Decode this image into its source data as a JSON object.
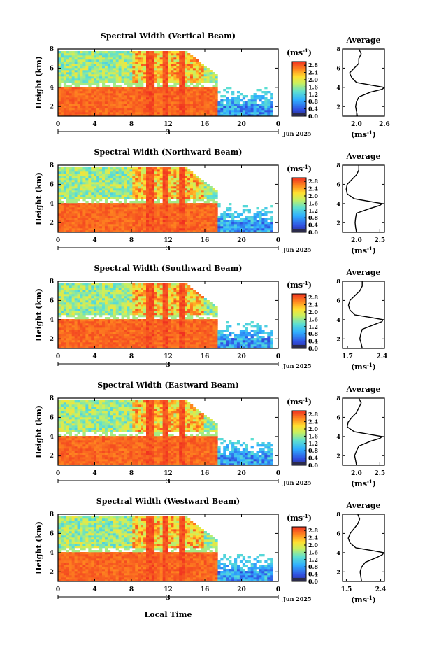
{
  "chart_data": [
    {
      "type": "heatmap",
      "title": "Spectral Width (Vertical Beam)",
      "ylabel": "Height (km)",
      "xlabel": "",
      "x_ticks": [
        "0",
        "4",
        "8",
        "12",
        "16",
        "20",
        "0"
      ],
      "y_ticks": [
        "2",
        "4",
        "6",
        "8"
      ],
      "xlim": [
        0,
        24
      ],
      "ylim": [
        1,
        8
      ],
      "date_tick": "3",
      "date_label": "Jun 2025",
      "colorbar": {
        "unit": "(ms",
        "unit_exp": "-1",
        "unit_close": ")",
        "ticks": [
          "0.0",
          "0.4",
          "0.8",
          "1.2",
          "1.6",
          "2.0",
          "2.4",
          "2.8"
        ],
        "range": [
          0,
          3.0
        ]
      },
      "average": {
        "title": "Average",
        "x_ticks": [
          "2.0",
          "2.6"
        ],
        "xlim": [
          1.7,
          2.6
        ],
        "xlabel": "(ms",
        "xlabel_exp": "-1",
        "xlabel_close": ")",
        "y_ticks": [
          "2",
          "4",
          "6",
          "8"
        ],
        "heights": [
          1.0,
          1.5,
          2.0,
          2.5,
          3.0,
          3.5,
          3.8,
          4.0,
          4.2,
          4.5,
          5.0,
          5.5,
          6.0,
          6.5,
          7.0,
          7.5,
          8.0
        ],
        "values": [
          2.02,
          2.0,
          1.98,
          2.0,
          2.05,
          2.3,
          2.55,
          2.6,
          2.35,
          2.0,
          1.9,
          1.85,
          1.95,
          2.05,
          2.05,
          2.1,
          2.05
        ]
      }
    },
    {
      "type": "heatmap",
      "title": "Spectral Width (Northward Beam)",
      "ylabel": "Height (km)",
      "xlabel": "",
      "x_ticks": [
        "0",
        "4",
        "8",
        "12",
        "16",
        "20",
        "0"
      ],
      "y_ticks": [
        "2",
        "4",
        "6",
        "8"
      ],
      "xlim": [
        0,
        24
      ],
      "ylim": [
        1,
        8
      ],
      "date_tick": "3",
      "date_label": "Jun 2025",
      "colorbar": {
        "unit": "(ms",
        "unit_exp": "-1",
        "unit_close": ")",
        "ticks": [
          "0.0",
          "0.4",
          "0.8",
          "1.2",
          "1.6",
          "2.0",
          "2.4",
          "2.8"
        ],
        "range": [
          0,
          3.0
        ]
      },
      "average": {
        "title": "Average",
        "x_ticks": [
          "2.0",
          "2.5"
        ],
        "xlim": [
          1.7,
          2.6
        ],
        "xlabel": "(ms",
        "xlabel_exp": "-1",
        "xlabel_close": ")",
        "y_ticks": [
          "2",
          "4",
          "6",
          "8"
        ],
        "heights": [
          1.0,
          1.5,
          2.0,
          2.5,
          3.0,
          3.5,
          3.8,
          4.0,
          4.2,
          4.5,
          5.0,
          5.5,
          6.0,
          6.5,
          7.0,
          7.5,
          8.0
        ],
        "values": [
          2.0,
          1.98,
          1.97,
          1.98,
          2.0,
          2.3,
          2.5,
          2.55,
          2.3,
          1.95,
          1.8,
          1.78,
          1.8,
          1.9,
          2.0,
          2.05,
          2.05
        ]
      }
    },
    {
      "type": "heatmap",
      "title": "Spectral Width (Southward Beam)",
      "ylabel": "Height (km)",
      "xlabel": "",
      "x_ticks": [
        "0",
        "4",
        "8",
        "12",
        "16",
        "20",
        "0"
      ],
      "y_ticks": [
        "2",
        "4",
        "6",
        "8"
      ],
      "xlim": [
        0,
        24
      ],
      "ylim": [
        1,
        8
      ],
      "date_tick": "3",
      "date_label": "Jun 2025",
      "colorbar": {
        "unit": "(ms",
        "unit_exp": "-1",
        "unit_close": ")",
        "ticks": [
          "0.0",
          "0.4",
          "0.8",
          "1.2",
          "1.6",
          "2.0",
          "2.4",
          "2.8"
        ],
        "range": [
          0,
          3.0
        ]
      },
      "average": {
        "title": "Average",
        "x_ticks": [
          "1.7",
          "2.4"
        ],
        "xlim": [
          1.6,
          2.45
        ],
        "xlabel": "(ms",
        "xlabel_exp": "-1",
        "xlabel_close": ")",
        "y_ticks": [
          "2",
          "4",
          "6",
          "8"
        ],
        "heights": [
          1.0,
          1.5,
          2.0,
          2.5,
          3.0,
          3.5,
          3.8,
          4.0,
          4.2,
          4.5,
          5.0,
          5.5,
          6.0,
          6.5,
          7.0,
          7.5,
          8.0
        ],
        "values": [
          2.0,
          1.98,
          1.95,
          1.97,
          2.0,
          2.25,
          2.4,
          2.42,
          2.2,
          1.85,
          1.75,
          1.72,
          1.75,
          1.85,
          1.95,
          2.0,
          2.0
        ]
      }
    },
    {
      "type": "heatmap",
      "title": "Spectral Width (Eastward Beam)",
      "ylabel": "Height (km)",
      "xlabel": "",
      "x_ticks": [
        "0",
        "4",
        "8",
        "12",
        "16",
        "20",
        "0"
      ],
      "y_ticks": [
        "2",
        "4",
        "6",
        "8"
      ],
      "xlim": [
        0,
        24
      ],
      "ylim": [
        1,
        8
      ],
      "date_tick": "3",
      "date_label": "Jun 2025",
      "colorbar": {
        "unit": "(ms",
        "unit_exp": "-1",
        "unit_close": ")",
        "ticks": [
          "0.0",
          "0.4",
          "0.8",
          "1.2",
          "1.6",
          "2.0",
          "2.4",
          "2.8"
        ],
        "range": [
          0,
          3.0
        ]
      },
      "average": {
        "title": "Average",
        "x_ticks": [
          "2.0",
          "2.5"
        ],
        "xlim": [
          1.7,
          2.6
        ],
        "xlabel": "(ms",
        "xlabel_exp": "-1",
        "xlabel_close": ")",
        "y_ticks": [
          "2",
          "4",
          "6",
          "8"
        ],
        "heights": [
          1.0,
          1.5,
          2.0,
          2.5,
          3.0,
          3.5,
          3.8,
          4.0,
          4.2,
          4.5,
          5.0,
          5.5,
          6.0,
          6.5,
          7.0,
          7.5,
          8.0
        ],
        "values": [
          2.0,
          1.98,
          1.96,
          2.0,
          2.05,
          2.3,
          2.5,
          2.55,
          2.3,
          1.95,
          1.8,
          1.82,
          1.9,
          2.0,
          2.05,
          2.1,
          2.05
        ]
      }
    },
    {
      "type": "heatmap",
      "title": "Spectral Width (Westward Beam)",
      "ylabel": "Height (km)",
      "xlabel": "Local Time",
      "x_ticks": [
        "0",
        "4",
        "8",
        "12",
        "16",
        "20",
        "0"
      ],
      "y_ticks": [
        "2",
        "4",
        "6",
        "8"
      ],
      "xlim": [
        0,
        24
      ],
      "ylim": [
        1,
        8
      ],
      "date_tick": "3",
      "date_label": "Jun 2025",
      "colorbar": {
        "unit": "(ms",
        "unit_exp": "-1",
        "unit_close": ")",
        "ticks": [
          "0.0",
          "0.4",
          "0.8",
          "1.2",
          "1.6",
          "2.0",
          "2.4",
          "2.8"
        ],
        "range": [
          0,
          3.0
        ]
      },
      "average": {
        "title": "Average",
        "x_ticks": [
          "1.5",
          "2.4"
        ],
        "xlim": [
          1.4,
          2.5
        ],
        "xlabel": "(ms",
        "xlabel_exp": "-1",
        "xlabel_close": ")",
        "y_ticks": [
          "2",
          "4",
          "6",
          "8"
        ],
        "heights": [
          1.0,
          1.5,
          2.0,
          2.5,
          3.0,
          3.5,
          3.8,
          4.0,
          4.2,
          4.5,
          5.0,
          5.5,
          6.0,
          6.5,
          7.0,
          7.5,
          8.0
        ],
        "values": [
          1.9,
          1.88,
          1.86,
          1.9,
          2.0,
          2.3,
          2.45,
          2.48,
          2.2,
          1.75,
          1.6,
          1.55,
          1.6,
          1.7,
          1.8,
          1.85,
          1.8
        ]
      }
    }
  ]
}
